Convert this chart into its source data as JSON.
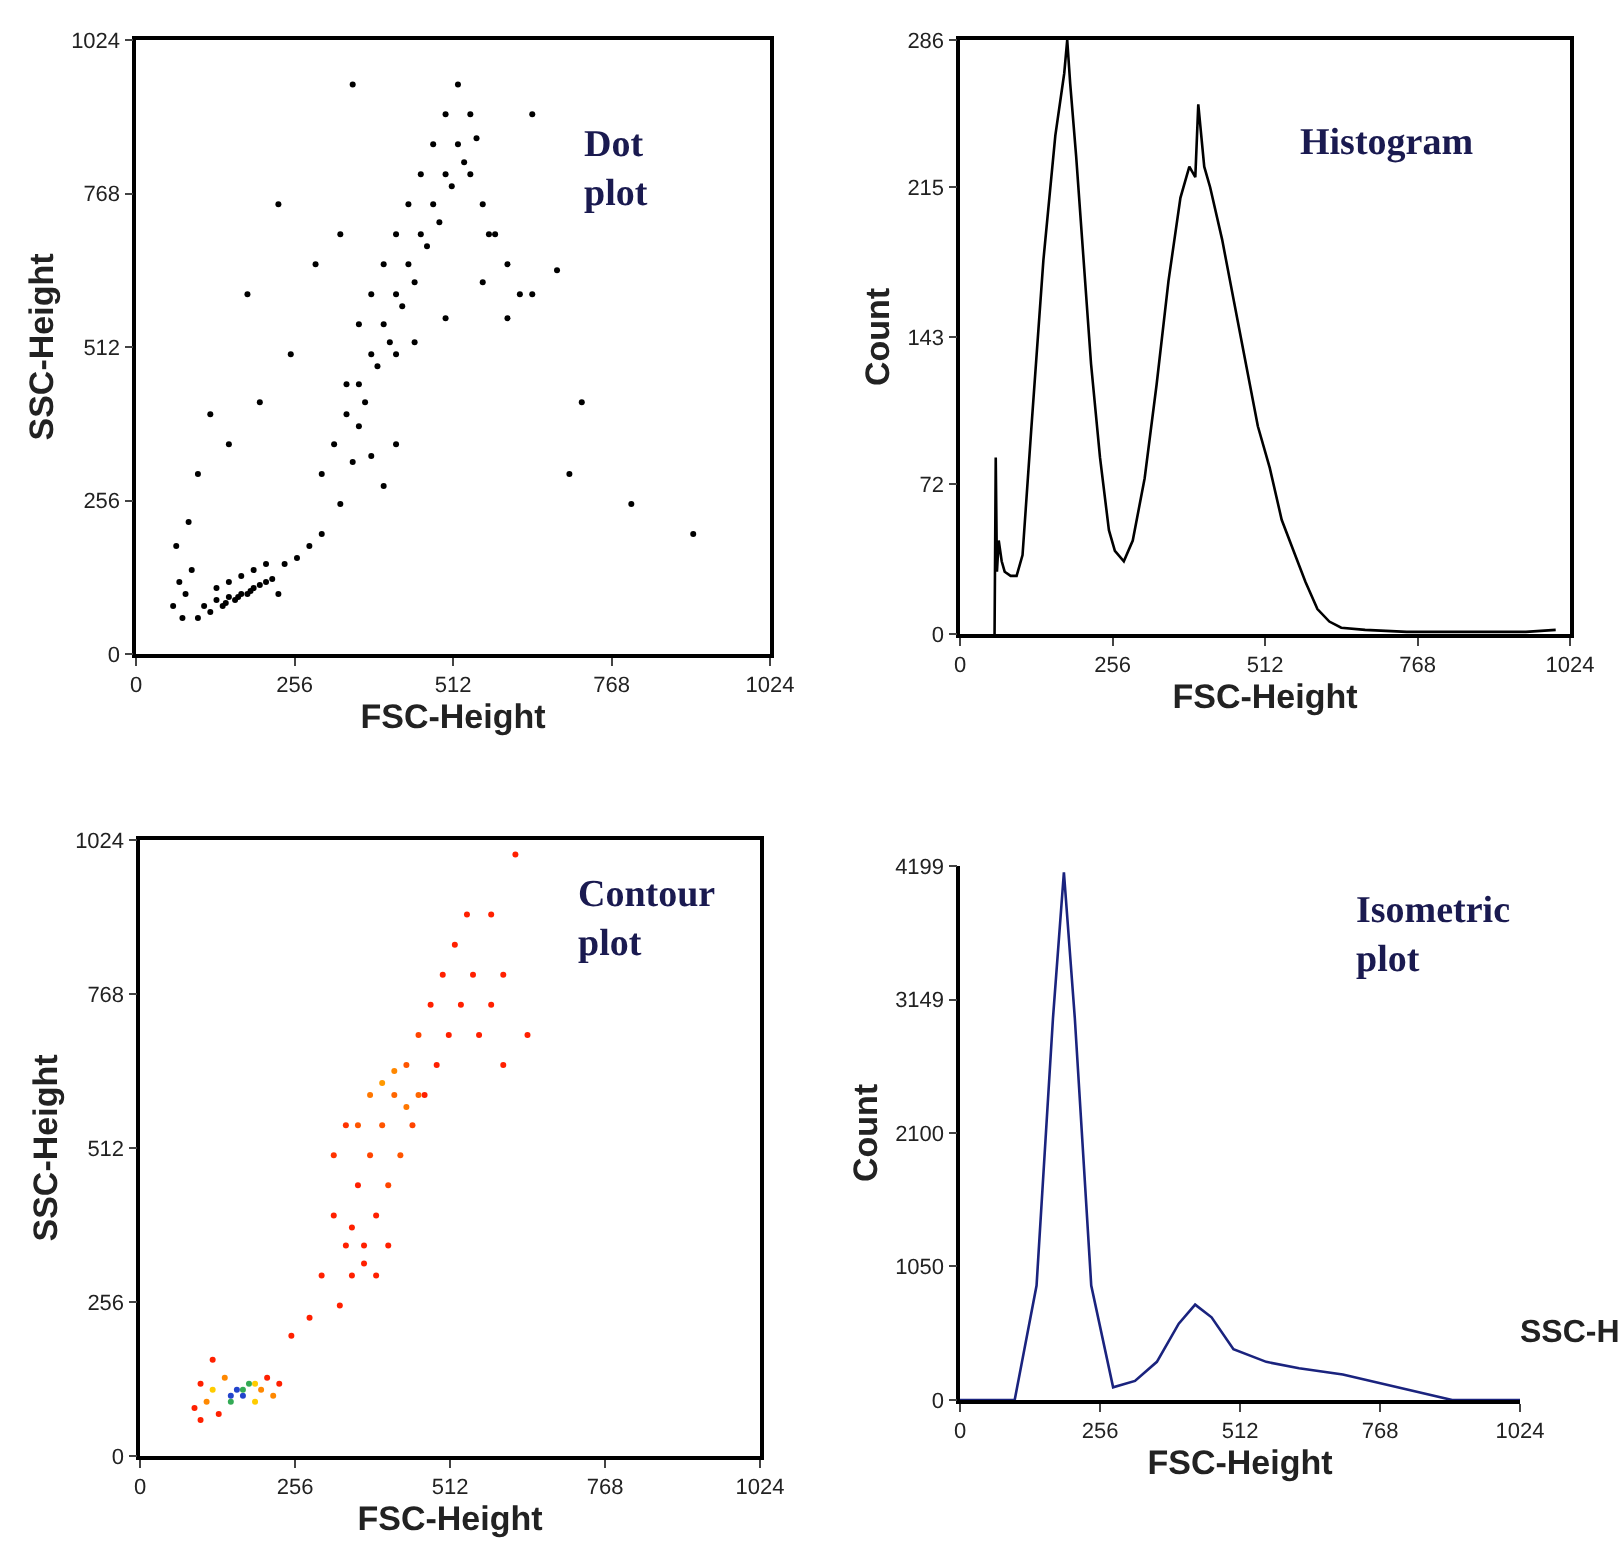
{
  "chart_data": [
    {
      "type": "scatter",
      "xlabel": "FSC-Height",
      "ylabel": "SSC-Height",
      "annotations": [
        "Dot\nplot"
      ],
      "xlim": [
        0,
        1024
      ],
      "ylim": [
        0,
        1024
      ],
      "xticks": [
        0,
        256,
        512,
        768,
        1024
      ],
      "yticks": [
        0,
        256,
        512,
        768,
        1024
      ],
      "series": [
        {
          "color": "#000000",
          "x": [
            110,
            130,
            150,
            170,
            190,
            210,
            120,
            140,
            160,
            180,
            200,
            220,
            130,
            150,
            170,
            190,
            210,
            100,
            230,
            145,
            165,
            185,
            60,
            70,
            80,
            90,
            65,
            75,
            85,
            300,
            320,
            340,
            360,
            380,
            400,
            420,
            440,
            460,
            480,
            500,
            520,
            540,
            560,
            580,
            330,
            350,
            370,
            390,
            410,
            430,
            450,
            470,
            490,
            510,
            530,
            550,
            570,
            600,
            620,
            360,
            380,
            400,
            420,
            440,
            460,
            480,
            500,
            520,
            540,
            340,
            360,
            380,
            400,
            420,
            300,
            280,
            260,
            240,
            420,
            450,
            500,
            560,
            600,
            640,
            680,
            150,
            200,
            250,
            120,
            100,
            700,
            800,
            900,
            180,
            230,
            330,
            350,
            290,
            640,
            720
          ],
          "values": [
            80,
            90,
            95,
            100,
            110,
            120,
            70,
            80,
            90,
            100,
            115,
            125,
            110,
            120,
            130,
            140,
            150,
            60,
            100,
            85,
            95,
            105,
            80,
            120,
            100,
            140,
            180,
            60,
            220,
            300,
            350,
            400,
            450,
            500,
            550,
            600,
            650,
            700,
            750,
            800,
            850,
            900,
            750,
            700,
            250,
            320,
            420,
            480,
            520,
            580,
            620,
            680,
            720,
            780,
            820,
            860,
            700,
            650,
            600,
            550,
            600,
            650,
            700,
            750,
            800,
            850,
            900,
            950,
            800,
            450,
            380,
            330,
            280,
            350,
            200,
            180,
            160,
            150,
            500,
            520,
            560,
            620,
            560,
            600,
            640,
            350,
            420,
            500,
            400,
            300,
            300,
            250,
            200,
            600,
            750,
            700,
            950,
            650,
            900,
            420
          ]
        }
      ]
    },
    {
      "type": "line",
      "xlabel": "FSC-Height",
      "ylabel": "Count",
      "annotations": [
        "Histogram"
      ],
      "xlim": [
        0,
        1024
      ],
      "ylim": [
        0,
        286
      ],
      "xticks": [
        0,
        256,
        512,
        768,
        1024
      ],
      "yticks": [
        0,
        72,
        143,
        215,
        286
      ],
      "series": [
        {
          "color": "#000000",
          "x": [
            58,
            60,
            62,
            65,
            70,
            75,
            85,
            95,
            105,
            120,
            140,
            160,
            175,
            180,
            185,
            195,
            205,
            220,
            235,
            250,
            260,
            275,
            290,
            310,
            330,
            350,
            370,
            385,
            395,
            400,
            410,
            420,
            440,
            460,
            480,
            500,
            520,
            540,
            560,
            580,
            600,
            620,
            640,
            680,
            750,
            850,
            950,
            1000
          ],
          "values": [
            0,
            85,
            30,
            45,
            35,
            30,
            28,
            28,
            38,
            100,
            180,
            240,
            270,
            286,
            265,
            230,
            190,
            130,
            85,
            50,
            40,
            35,
            45,
            75,
            120,
            170,
            210,
            225,
            220,
            255,
            225,
            215,
            190,
            160,
            130,
            100,
            80,
            55,
            40,
            25,
            12,
            6,
            3,
            2,
            1,
            1,
            1,
            2
          ]
        }
      ]
    },
    {
      "type": "scatter",
      "xlabel": "FSC-Height",
      "ylabel": "SSC-Height",
      "annotations": [
        "Contour\nplot"
      ],
      "xlim": [
        0,
        1024
      ],
      "ylim": [
        0,
        1024
      ],
      "xticks": [
        0,
        256,
        512,
        768,
        1024
      ],
      "yticks": [
        0,
        256,
        512,
        768,
        1024
      ],
      "series": [
        {
          "x": [
            90,
            100,
            110,
            120,
            130,
            140,
            150,
            160,
            170,
            180,
            190,
            200,
            210,
            220,
            230,
            100,
            120,
            250,
            280,
            300,
            320,
            340,
            360,
            380,
            400,
            420,
            440,
            460,
            480,
            500,
            520,
            540,
            560,
            580,
            600,
            620,
            330,
            350,
            370,
            390,
            410,
            430,
            450,
            470,
            490,
            510,
            530,
            550,
            380,
            400,
            420,
            440,
            460,
            360,
            340,
            320,
            350,
            370,
            390,
            410,
            600,
            640,
            580,
            150,
            170,
            190
          ],
          "values": [
            80,
            60,
            90,
            110,
            70,
            130,
            90,
            110,
            100,
            120,
            90,
            110,
            130,
            100,
            120,
            120,
            160,
            200,
            230,
            300,
            400,
            350,
            450,
            500,
            550,
            600,
            650,
            700,
            750,
            800,
            850,
            900,
            700,
            750,
            800,
            1000,
            250,
            300,
            350,
            400,
            450,
            500,
            550,
            600,
            650,
            700,
            750,
            800,
            600,
            620,
            640,
            580,
            600,
            550,
            550,
            500,
            380,
            320,
            300,
            350,
            650,
            700,
            900,
            100,
            110,
            120
          ],
          "colors": [
            "#ff2000",
            "#ff2000",
            "#ff8800",
            "#ffcc00",
            "#ff2000",
            "#ff8800",
            "#33aa55",
            "#2244cc",
            "#2244cc",
            "#33aa55",
            "#ffcc00",
            "#ff8800",
            "#ff2000",
            "#ff8800",
            "#ff2000",
            "#ff2000",
            "#ff2000",
            "#ff2000",
            "#ff2000",
            "#ff2000",
            "#ff2000",
            "#ff2000",
            "#ff2000",
            "#ff4400",
            "#ff5500",
            "#ff6600",
            "#ff5500",
            "#ff4400",
            "#ff2000",
            "#ff2000",
            "#ff2000",
            "#ff2000",
            "#ff2000",
            "#ff2000",
            "#ff2000",
            "#ff2000",
            "#ff2000",
            "#ff2000",
            "#ff2000",
            "#ff2000",
            "#ff4400",
            "#ff5500",
            "#ff4400",
            "#ff2000",
            "#ff2000",
            "#ff2000",
            "#ff2000",
            "#ff2000",
            "#ff7700",
            "#ff9900",
            "#ff8800",
            "#ff7700",
            "#ff6600",
            "#ff5500",
            "#ff3300",
            "#ff3300",
            "#ff2000",
            "#ff2000",
            "#ff2000",
            "#ff2000",
            "#ff2000",
            "#ff2000",
            "#ff2000",
            "#2244cc",
            "#33aa55",
            "#ffcc00"
          ]
        }
      ]
    },
    {
      "type": "line",
      "xlabel": "FSC-Height",
      "ylabel": "Count",
      "annotations": [
        "Isometric\nplot",
        "SSC-H"
      ],
      "xlim": [
        0,
        1024
      ],
      "ylim": [
        0,
        4199
      ],
      "xticks": [
        0,
        256,
        512,
        768,
        1024
      ],
      "yticks": [
        0,
        1050,
        2100,
        3149,
        4199
      ],
      "series": [
        {
          "color": "#1a237e",
          "x": [
            0,
            100,
            140,
            170,
            190,
            210,
            240,
            280,
            320,
            360,
            400,
            430,
            460,
            500,
            560,
            620,
            700,
            800,
            900,
            1024
          ],
          "values": [
            0,
            0,
            900,
            3000,
            4150,
            3000,
            900,
            100,
            150,
            300,
            600,
            750,
            650,
            400,
            300,
            250,
            200,
            100,
            0,
            0
          ]
        }
      ]
    }
  ]
}
